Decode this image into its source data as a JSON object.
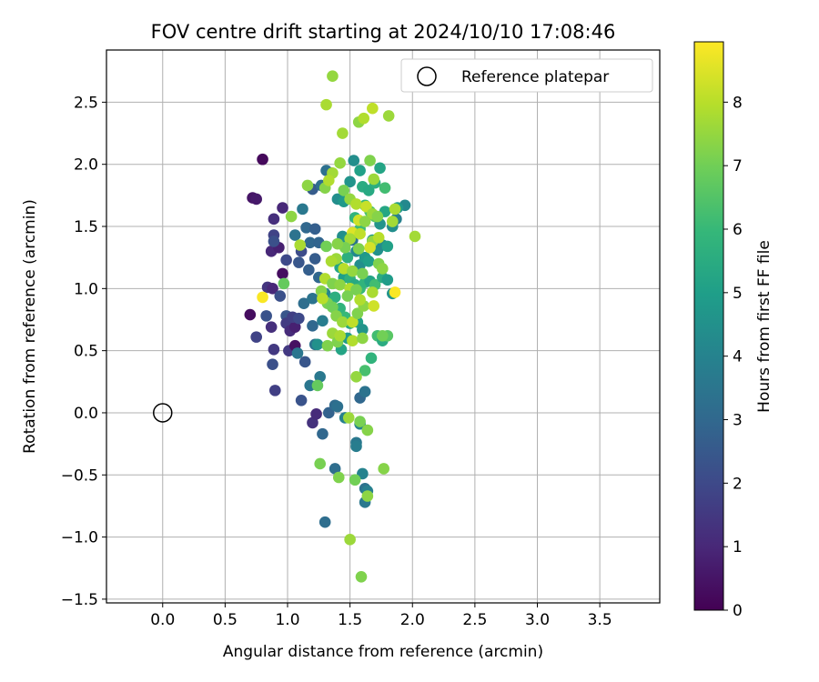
{
  "chart_data": {
    "type": "scatter",
    "title": "FOV centre drift starting at 2024/10/10 17:08:46",
    "xlabel": "Angular distance from reference (arcmin)",
    "ylabel": "Rotation from reference (arcmin)",
    "xlim": [
      -0.45,
      3.98
    ],
    "ylim": [
      -1.53,
      2.92
    ],
    "x_ticks": [
      0.0,
      0.5,
      1.0,
      1.5,
      2.0,
      2.5,
      3.0,
      3.5
    ],
    "x_tick_labels": [
      "0.0",
      "0.5",
      "1.0",
      "1.5",
      "2.0",
      "2.5",
      "3.0",
      "3.5"
    ],
    "y_ticks": [
      -1.5,
      -1.0,
      -0.5,
      0.0,
      0.5,
      1.0,
      1.5,
      2.0,
      2.5
    ],
    "y_tick_labels": [
      "−1.5",
      "−1.0",
      "−0.5",
      "0.0",
      "0.5",
      "1.0",
      "1.5",
      "2.0",
      "2.5"
    ],
    "grid": true,
    "legend": {
      "position": "top-right",
      "entries": [
        "Reference platepar"
      ]
    },
    "reference_point": {
      "x": 0.0,
      "y": 0.0
    },
    "colorbar": {
      "label": "Hours from first FF file",
      "colormap": "viridis",
      "range": [
        0,
        8.95
      ],
      "ticks": [
        0,
        1,
        2,
        3,
        4,
        5,
        6,
        7,
        8
      ],
      "tick_labels": [
        "0",
        "1",
        "2",
        "3",
        "4",
        "5",
        "6",
        "7",
        "8"
      ],
      "colors": [
        "#440154",
        "#482878",
        "#3e4989",
        "#31688e",
        "#26828e",
        "#1f9e89",
        "#35b779",
        "#6ece58",
        "#b5de2b",
        "#fde725"
      ]
    },
    "points": [
      [
        0.8,
        2.04,
        0.2
      ],
      [
        0.72,
        1.73,
        0.5
      ],
      [
        0.75,
        1.72,
        0.6
      ],
      [
        0.96,
        1.65,
        1.0
      ],
      [
        0.89,
        1.56,
        1.2
      ],
      [
        0.87,
        1.3,
        1.0
      ],
      [
        0.93,
        1.33,
        0.8
      ],
      [
        0.89,
        1.43,
        1.8
      ],
      [
        0.89,
        1.38,
        2.2
      ],
      [
        0.99,
        1.23,
        2.0
      ],
      [
        1.09,
        1.21,
        2.4
      ],
      [
        1.11,
        1.3,
        2.1
      ],
      [
        0.84,
        1.01,
        1.4
      ],
      [
        0.88,
        1.0,
        1.0
      ],
      [
        0.96,
        1.12,
        0.3
      ],
      [
        0.7,
        0.79,
        0.3
      ],
      [
        0.75,
        0.61,
        1.8
      ],
      [
        0.83,
        0.78,
        2.3
      ],
      [
        0.87,
        0.69,
        1.2
      ],
      [
        0.89,
        0.51,
        1.5
      ],
      [
        0.88,
        0.39,
        2.2
      ],
      [
        0.9,
        0.18,
        1.7
      ],
      [
        0.94,
        0.94,
        2.2
      ],
      [
        0.99,
        0.78,
        2.4
      ],
      [
        0.99,
        0.72,
        1.6
      ],
      [
        1.02,
        0.66,
        1.1
      ],
      [
        1.06,
        0.69,
        0.8
      ],
      [
        1.04,
        0.77,
        1.7
      ],
      [
        1.09,
        0.76,
        2.0
      ],
      [
        1.01,
        0.5,
        1.5
      ],
      [
        1.06,
        0.54,
        0.4
      ],
      [
        1.08,
        0.48,
        3.5
      ],
      [
        1.14,
        0.41,
        2.4
      ],
      [
        1.11,
        0.1,
        2.3
      ],
      [
        1.18,
        0.22,
        3.5
      ],
      [
        1.2,
        -0.08,
        1.3
      ],
      [
        1.23,
        -0.01,
        1.1
      ],
      [
        1.28,
        -0.17,
        3.0
      ],
      [
        1.3,
        -0.88,
        3.2
      ],
      [
        1.33,
        0.0,
        2.8
      ],
      [
        1.2,
        1.8,
        2.6
      ],
      [
        1.27,
        1.83,
        3.2
      ],
      [
        1.31,
        1.95,
        3.3
      ],
      [
        1.35,
        1.93,
        3.1
      ],
      [
        1.12,
        1.64,
        3.6
      ],
      [
        1.06,
        1.43,
        3.4
      ],
      [
        1.15,
        1.49,
        3.0
      ],
      [
        1.22,
        1.48,
        2.7
      ],
      [
        1.18,
        1.37,
        3.0
      ],
      [
        1.25,
        1.37,
        2.9
      ],
      [
        1.22,
        1.24,
        2.6
      ],
      [
        1.25,
        1.09,
        3.0
      ],
      [
        1.13,
        0.88,
        3.2
      ],
      [
        1.2,
        0.92,
        3.4
      ],
      [
        1.2,
        0.7,
        3.0
      ],
      [
        1.28,
        0.74,
        3.8
      ],
      [
        1.3,
        0.96,
        4.1
      ],
      [
        1.22,
        0.55,
        3.4
      ],
      [
        1.24,
        0.55,
        4.5
      ],
      [
        1.26,
        0.29,
        3.6
      ],
      [
        1.38,
        0.06,
        3.1
      ],
      [
        1.4,
        0.05,
        3.3
      ],
      [
        1.46,
        -0.04,
        3.9
      ],
      [
        1.58,
        -0.09,
        4.0
      ],
      [
        1.55,
        -0.24,
        3.6
      ],
      [
        1.55,
        -0.27,
        3.8
      ],
      [
        1.58,
        0.12,
        3.0
      ],
      [
        1.62,
        0.17,
        3.4
      ],
      [
        1.38,
        -0.45,
        3.2
      ],
      [
        1.6,
        -0.49,
        4.0
      ],
      [
        1.62,
        -0.61,
        3.4
      ],
      [
        1.64,
        -0.63,
        3.9
      ],
      [
        1.62,
        -0.72,
        3.6
      ],
      [
        1.44,
        1.42,
        4.4
      ],
      [
        1.48,
        1.4,
        4.6
      ],
      [
        1.52,
        1.39,
        3.4
      ],
      [
        1.55,
        1.3,
        4.2
      ],
      [
        1.58,
        1.19,
        4.4
      ],
      [
        1.62,
        1.25,
        4.8
      ],
      [
        1.65,
        1.22,
        5.0
      ],
      [
        1.68,
        1.39,
        4.8
      ],
      [
        1.72,
        1.31,
        4.5
      ],
      [
        1.76,
        1.35,
        4.3
      ],
      [
        1.8,
        1.34,
        5.1
      ],
      [
        1.74,
        1.52,
        4.6
      ],
      [
        1.78,
        1.62,
        5.3
      ],
      [
        1.84,
        1.5,
        4.4
      ],
      [
        1.87,
        1.56,
        3.9
      ],
      [
        1.94,
        1.67,
        4.2
      ],
      [
        1.88,
        1.65,
        4.8
      ],
      [
        1.4,
        1.72,
        4.4
      ],
      [
        1.45,
        1.7,
        4.8
      ],
      [
        1.5,
        1.86,
        4.6
      ],
      [
        1.53,
        2.03,
        4.4
      ],
      [
        1.58,
        1.95,
        5.1
      ],
      [
        1.6,
        1.82,
        5.5
      ],
      [
        1.65,
        1.79,
        5.4
      ],
      [
        1.7,
        1.85,
        5.6
      ],
      [
        1.74,
        1.97,
        5.2
      ],
      [
        1.78,
        1.81,
        6.2
      ],
      [
        1.62,
        1.67,
        6.0
      ],
      [
        1.66,
        1.62,
        6.4
      ],
      [
        1.7,
        1.58,
        6.6
      ],
      [
        1.54,
        1.57,
        5.8
      ],
      [
        1.58,
        1.48,
        6.1
      ],
      [
        1.48,
        1.25,
        5.6
      ],
      [
        1.42,
        1.17,
        5.2
      ],
      [
        1.45,
        1.09,
        5.0
      ],
      [
        1.5,
        1.08,
        5.7
      ],
      [
        1.54,
        1.03,
        5.4
      ],
      [
        1.58,
        1.0,
        6.0
      ],
      [
        1.62,
        1.05,
        5.8
      ],
      [
        1.66,
        1.06,
        5.2
      ],
      [
        1.7,
        1.03,
        6.2
      ],
      [
        1.76,
        1.09,
        5.5
      ],
      [
        1.8,
        1.07,
        4.9
      ],
      [
        1.84,
        0.96,
        4.6
      ],
      [
        1.38,
        0.93,
        5.6
      ],
      [
        1.42,
        0.84,
        5.8
      ],
      [
        1.46,
        0.77,
        6.0
      ],
      [
        1.5,
        0.72,
        5.4
      ],
      [
        1.56,
        0.73,
        5.0
      ],
      [
        1.6,
        0.67,
        4.6
      ],
      [
        1.48,
        0.6,
        4.9
      ],
      [
        1.43,
        0.51,
        5.2
      ],
      [
        1.72,
        0.62,
        6.2
      ],
      [
        1.76,
        0.58,
        5.5
      ],
      [
        1.8,
        0.62,
        6.6
      ],
      [
        1.67,
        0.44,
        5.8
      ],
      [
        1.62,
        0.34,
        6.3
      ],
      [
        1.24,
        0.22,
        6.8
      ],
      [
        1.32,
        0.54,
        7.2
      ],
      [
        1.55,
        0.29,
        7.5
      ],
      [
        1.58,
        -0.07,
        7.1
      ],
      [
        1.64,
        -0.14,
        7.3
      ],
      [
        1.49,
        -0.04,
        7.6
      ],
      [
        1.54,
        -0.54,
        7.0
      ],
      [
        1.64,
        -0.67,
        7.4
      ],
      [
        1.41,
        -0.52,
        7.2
      ],
      [
        1.26,
        -0.41,
        7.1
      ],
      [
        1.77,
        -0.45,
        7.3
      ],
      [
        1.5,
        -1.02,
        7.6
      ],
      [
        1.59,
        -1.32,
        7.2
      ],
      [
        1.36,
        2.71,
        7.5
      ],
      [
        1.31,
        2.48,
        7.8
      ],
      [
        1.57,
        2.34,
        7.4
      ],
      [
        1.61,
        2.37,
        7.9
      ],
      [
        1.68,
        2.45,
        8.1
      ],
      [
        1.81,
        2.39,
        7.6
      ],
      [
        1.44,
        2.25,
        7.7
      ],
      [
        1.66,
        2.03,
        7.2
      ],
      [
        1.69,
        1.88,
        7.6
      ],
      [
        1.42,
        2.01,
        7.5
      ],
      [
        1.36,
        1.93,
        7.7
      ],
      [
        1.3,
        1.81,
        7.3
      ],
      [
        1.16,
        1.83,
        7.4
      ],
      [
        1.33,
        1.87,
        7.9
      ],
      [
        1.45,
        1.79,
        7.1
      ],
      [
        1.5,
        1.72,
        7.5
      ],
      [
        1.55,
        1.68,
        7.9
      ],
      [
        1.63,
        1.66,
        8.2
      ],
      [
        1.68,
        1.6,
        7.6
      ],
      [
        1.72,
        1.58,
        7.3
      ],
      [
        1.86,
        1.64,
        7.8
      ],
      [
        1.84,
        1.54,
        7.7
      ],
      [
        1.57,
        1.55,
        8.3
      ],
      [
        1.62,
        1.54,
        7.4
      ],
      [
        1.52,
        1.45,
        8.5
      ],
      [
        1.58,
        1.44,
        8.1
      ],
      [
        1.5,
        1.4,
        7.7
      ],
      [
        1.68,
        1.38,
        7.5
      ],
      [
        1.73,
        1.41,
        8.0
      ],
      [
        1.66,
        1.33,
        8.4
      ],
      [
        1.57,
        1.32,
        7.2
      ],
      [
        1.46,
        1.33,
        7.1
      ],
      [
        1.4,
        1.36,
        7.3
      ],
      [
        1.31,
        1.34,
        7.0
      ],
      [
        1.1,
        1.35,
        7.8
      ],
      [
        1.03,
        1.58,
        7.4
      ],
      [
        2.02,
        1.42,
        7.7
      ],
      [
        1.39,
        1.24,
        7.6
      ],
      [
        1.35,
        1.22,
        7.8
      ],
      [
        1.45,
        1.16,
        8.0
      ],
      [
        1.52,
        1.14,
        7.5
      ],
      [
        1.6,
        1.12,
        7.1
      ],
      [
        1.73,
        1.2,
        7.2
      ],
      [
        1.76,
        1.16,
        7.4
      ],
      [
        1.3,
        1.08,
        7.9
      ],
      [
        1.36,
        1.04,
        7.2
      ],
      [
        1.42,
        1.03,
        7.4
      ],
      [
        1.5,
        1.0,
        7.9
      ],
      [
        1.55,
        0.99,
        7.1
      ],
      [
        1.68,
        0.97,
        7.8
      ],
      [
        1.86,
        0.97,
        8.9
      ],
      [
        1.27,
        0.98,
        7.3
      ],
      [
        1.32,
        0.88,
        7.1
      ],
      [
        1.36,
        0.85,
        7.0
      ],
      [
        1.39,
        0.78,
        7.3
      ],
      [
        1.44,
        0.73,
        7.6
      ],
      [
        1.52,
        0.73,
        8.1
      ],
      [
        1.56,
        0.8,
        7.2
      ],
      [
        1.61,
        0.86,
        7.4
      ],
      [
        1.69,
        0.86,
        8.3
      ],
      [
        1.58,
        0.91,
        7.9
      ],
      [
        1.48,
        0.94,
        7.1
      ],
      [
        1.36,
        0.64,
        7.6
      ],
      [
        1.4,
        0.57,
        7.2
      ],
      [
        1.42,
        0.62,
        7.8
      ],
      [
        1.52,
        0.58,
        7.9
      ],
      [
        1.6,
        0.6,
        7.4
      ],
      [
        1.76,
        0.62,
        7.0
      ],
      [
        0.97,
        1.04,
        6.8
      ],
      [
        0.8,
        0.93,
        8.9
      ],
      [
        1.28,
        0.92,
        8.0
      ],
      [
        1.17,
        1.15,
        2.7
      ]
    ]
  }
}
